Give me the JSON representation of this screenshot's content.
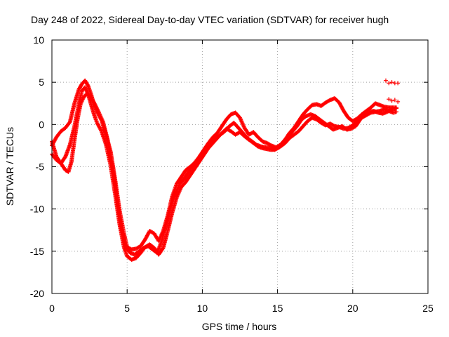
{
  "chart_data": {
    "type": "scatter",
    "title": "Day 248 of 2022, Sidereal Day-to-day VTEC variation (SDTVAR) for receiver hugh",
    "xlabel": "GPS time / hours",
    "ylabel": "SDTVAR / TECUs",
    "xlim": [
      0,
      25
    ],
    "ylim": [
      -20,
      10
    ],
    "xticks": [
      0,
      5,
      10,
      15,
      20,
      25
    ],
    "yticks": [
      -20,
      -15,
      -10,
      -5,
      0,
      5,
      10
    ],
    "grid": true,
    "marker": "plus",
    "color": "#ff0000",
    "series": [
      {
        "name": "trace-1",
        "points": [
          [
            0.0,
            -2.5
          ],
          [
            0.3,
            -1.5
          ],
          [
            0.6,
            -0.8
          ],
          [
            0.9,
            -0.4
          ],
          [
            1.2,
            0.3
          ],
          [
            1.5,
            2.5
          ],
          [
            1.8,
            4.2
          ],
          [
            2.0,
            4.8
          ],
          [
            2.2,
            5.2
          ],
          [
            2.4,
            4.6
          ],
          [
            2.6,
            3.6
          ],
          [
            2.8,
            2.4
          ],
          [
            3.0,
            1.5
          ],
          [
            3.3,
            0.5
          ],
          [
            3.6,
            -1.2
          ],
          [
            3.9,
            -3.2
          ],
          [
            4.2,
            -6.5
          ],
          [
            4.5,
            -10.2
          ],
          [
            4.8,
            -13.0
          ],
          [
            5.0,
            -14.5
          ],
          [
            5.3,
            -14.8
          ],
          [
            5.6,
            -14.7
          ],
          [
            5.9,
            -14.4
          ],
          [
            6.2,
            -13.6
          ],
          [
            6.5,
            -12.6
          ],
          [
            6.8,
            -12.9
          ],
          [
            7.1,
            -13.8
          ],
          [
            7.4,
            -12.6
          ],
          [
            7.7,
            -10.8
          ],
          [
            8.0,
            -8.5
          ],
          [
            8.3,
            -7.0
          ],
          [
            8.6,
            -6.2
          ],
          [
            8.9,
            -5.4
          ],
          [
            9.2,
            -5.0
          ],
          [
            9.5,
            -4.5
          ],
          [
            9.8,
            -3.8
          ],
          [
            10.1,
            -3.0
          ],
          [
            10.4,
            -2.2
          ],
          [
            10.7,
            -1.5
          ],
          [
            11.0,
            -1.0
          ],
          [
            11.3,
            -0.2
          ],
          [
            11.6,
            0.6
          ],
          [
            11.9,
            1.2
          ],
          [
            12.2,
            1.4
          ],
          [
            12.5,
            0.8
          ],
          [
            12.8,
            -0.4
          ],
          [
            13.1,
            -1.2
          ],
          [
            13.4,
            -0.9
          ],
          [
            13.7,
            -1.5
          ],
          [
            14.0,
            -2.0
          ],
          [
            14.3,
            -2.2
          ],
          [
            14.6,
            -2.5
          ],
          [
            14.9,
            -2.7
          ],
          [
            15.2,
            -2.4
          ],
          [
            15.5,
            -1.8
          ],
          [
            15.8,
            -1.0
          ],
          [
            16.1,
            -0.4
          ],
          [
            16.4,
            0.4
          ],
          [
            16.7,
            1.2
          ],
          [
            17.0,
            1.8
          ],
          [
            17.3,
            2.3
          ],
          [
            17.6,
            2.4
          ],
          [
            17.9,
            2.2
          ],
          [
            18.2,
            2.6
          ],
          [
            18.5,
            2.9
          ],
          [
            18.8,
            3.1
          ],
          [
            19.1,
            2.6
          ],
          [
            19.4,
            1.6
          ],
          [
            19.7,
            0.8
          ],
          [
            20.0,
            0.4
          ],
          [
            20.3,
            0.7
          ],
          [
            20.6,
            1.2
          ],
          [
            20.9,
            1.6
          ],
          [
            21.2,
            2.0
          ],
          [
            21.5,
            2.5
          ],
          [
            21.8,
            2.3
          ],
          [
            22.1,
            2.1
          ],
          [
            22.4,
            2.0
          ],
          [
            22.7,
            2.0
          ],
          [
            22.9,
            2.0
          ]
        ]
      },
      {
        "name": "trace-2",
        "points": [
          [
            0.0,
            -3.5
          ],
          [
            0.3,
            -4.2
          ],
          [
            0.6,
            -4.6
          ],
          [
            0.9,
            -3.8
          ],
          [
            1.2,
            -2.4
          ],
          [
            1.5,
            -0.2
          ],
          [
            1.8,
            2.5
          ],
          [
            2.0,
            4.0
          ],
          [
            2.2,
            4.4
          ],
          [
            2.4,
            3.6
          ],
          [
            2.6,
            2.4
          ],
          [
            2.8,
            1.2
          ],
          [
            3.0,
            0.2
          ],
          [
            3.3,
            -0.8
          ],
          [
            3.6,
            -2.4
          ],
          [
            3.9,
            -4.8
          ],
          [
            4.2,
            -8.2
          ],
          [
            4.5,
            -11.8
          ],
          [
            4.8,
            -14.6
          ],
          [
            5.0,
            -15.6
          ],
          [
            5.3,
            -16.0
          ],
          [
            5.6,
            -15.8
          ],
          [
            5.9,
            -15.2
          ],
          [
            6.2,
            -14.5
          ],
          [
            6.5,
            -14.2
          ],
          [
            6.8,
            -14.6
          ],
          [
            7.1,
            -15.4
          ],
          [
            7.4,
            -14.6
          ],
          [
            7.7,
            -12.6
          ],
          [
            8.0,
            -10.4
          ],
          [
            8.3,
            -8.6
          ],
          [
            8.6,
            -7.4
          ],
          [
            8.9,
            -6.8
          ],
          [
            9.2,
            -6.0
          ],
          [
            9.5,
            -5.2
          ],
          [
            9.8,
            -4.4
          ],
          [
            10.1,
            -3.6
          ],
          [
            10.4,
            -2.8
          ],
          [
            10.7,
            -2.2
          ],
          [
            11.0,
            -1.6
          ],
          [
            11.3,
            -1.0
          ],
          [
            11.6,
            -0.5
          ],
          [
            11.9,
            -0.8
          ],
          [
            12.2,
            -1.2
          ],
          [
            12.5,
            -0.9
          ],
          [
            12.8,
            -1.4
          ],
          [
            13.1,
            -1.8
          ],
          [
            13.4,
            -2.2
          ],
          [
            13.7,
            -2.6
          ],
          [
            14.0,
            -2.8
          ],
          [
            14.3,
            -2.9
          ],
          [
            14.6,
            -3.0
          ],
          [
            14.9,
            -2.9
          ],
          [
            15.2,
            -2.6
          ],
          [
            15.5,
            -2.2
          ],
          [
            15.8,
            -1.6
          ],
          [
            16.1,
            -1.2
          ],
          [
            16.4,
            -0.8
          ],
          [
            16.7,
            -0.2
          ],
          [
            17.0,
            0.4
          ],
          [
            17.3,
            0.8
          ],
          [
            17.6,
            0.6
          ],
          [
            17.9,
            0.2
          ],
          [
            18.2,
            -0.1
          ],
          [
            18.5,
            0.1
          ],
          [
            18.8,
            -0.2
          ],
          [
            19.1,
            -0.3
          ],
          [
            19.4,
            -0.5
          ],
          [
            19.7,
            -0.4
          ],
          [
            20.0,
            -0.1
          ],
          [
            20.3,
            0.4
          ],
          [
            20.6,
            0.8
          ],
          [
            20.9,
            1.1
          ],
          [
            21.2,
            1.4
          ],
          [
            21.5,
            1.5
          ],
          [
            21.8,
            1.6
          ],
          [
            22.1,
            1.8
          ],
          [
            22.4,
            1.6
          ],
          [
            22.7,
            1.4
          ],
          [
            22.9,
            1.5
          ]
        ]
      },
      {
        "name": "trace-3",
        "points": [
          [
            0.0,
            -2.0
          ],
          [
            0.3,
            -3.8
          ],
          [
            0.6,
            -4.6
          ],
          [
            0.9,
            -5.4
          ],
          [
            1.1,
            -5.6
          ],
          [
            1.3,
            -4.4
          ],
          [
            1.5,
            -1.8
          ],
          [
            1.7,
            0.6
          ],
          [
            1.9,
            2.4
          ],
          [
            2.1,
            3.2
          ],
          [
            2.3,
            3.6
          ],
          [
            2.5,
            3.4
          ],
          [
            2.8,
            2.6
          ],
          [
            3.1,
            1.5
          ],
          [
            3.4,
            0.3
          ],
          [
            3.7,
            -1.8
          ],
          [
            4.0,
            -4.6
          ],
          [
            4.3,
            -8.4
          ],
          [
            4.6,
            -12.2
          ],
          [
            4.9,
            -14.4
          ],
          [
            5.2,
            -15.2
          ],
          [
            5.5,
            -15.4
          ],
          [
            5.8,
            -15.0
          ],
          [
            6.1,
            -14.6
          ],
          [
            6.4,
            -14.4
          ],
          [
            6.7,
            -14.8
          ],
          [
            7.0,
            -15.2
          ],
          [
            7.3,
            -13.8
          ],
          [
            7.6,
            -11.8
          ],
          [
            7.9,
            -9.8
          ],
          [
            8.2,
            -8.2
          ],
          [
            8.5,
            -7.0
          ],
          [
            8.8,
            -6.4
          ],
          [
            9.1,
            -5.6
          ],
          [
            9.4,
            -4.8
          ],
          [
            9.7,
            -4.2
          ],
          [
            10.0,
            -3.4
          ],
          [
            10.3,
            -2.6
          ],
          [
            10.6,
            -2.0
          ],
          [
            10.9,
            -1.6
          ],
          [
            11.2,
            -1.2
          ],
          [
            11.5,
            -0.8
          ],
          [
            11.8,
            -0.2
          ],
          [
            12.1,
            0.2
          ],
          [
            12.4,
            -0.4
          ],
          [
            12.7,
            -1.0
          ],
          [
            13.0,
            -1.6
          ],
          [
            13.3,
            -2.0
          ],
          [
            13.6,
            -2.4
          ],
          [
            13.9,
            -2.6
          ],
          [
            14.2,
            -2.7
          ],
          [
            14.5,
            -2.8
          ],
          [
            14.8,
            -3.0
          ],
          [
            15.1,
            -2.7
          ],
          [
            15.4,
            -2.0
          ],
          [
            15.7,
            -1.4
          ],
          [
            16.0,
            -0.8
          ],
          [
            16.3,
            -0.2
          ],
          [
            16.6,
            0.6
          ],
          [
            16.9,
            1.0
          ],
          [
            17.2,
            1.2
          ],
          [
            17.5,
            1.0
          ],
          [
            17.8,
            0.6
          ],
          [
            18.1,
            0.2
          ],
          [
            18.4,
            -0.2
          ],
          [
            18.7,
            -0.6
          ],
          [
            19.0,
            -0.4
          ],
          [
            19.3,
            -0.2
          ],
          [
            19.6,
            -0.6
          ],
          [
            19.9,
            -0.5
          ],
          [
            20.2,
            -0.2
          ],
          [
            20.5,
            0.6
          ],
          [
            20.8,
            1.2
          ],
          [
            21.1,
            1.5
          ],
          [
            21.4,
            1.6
          ],
          [
            21.7,
            1.4
          ],
          [
            22.0,
            1.3
          ],
          [
            22.3,
            1.5
          ],
          [
            22.6,
            1.8
          ],
          [
            22.9,
            1.9
          ]
        ]
      },
      {
        "name": "trace-4",
        "points": [
          [
            22.2,
            5.2
          ],
          [
            22.4,
            4.9
          ],
          [
            22.6,
            5.0
          ],
          [
            22.8,
            4.9
          ],
          [
            23.0,
            4.9
          ],
          [
            22.4,
            3.0
          ],
          [
            22.6,
            2.8
          ],
          [
            22.8,
            2.9
          ],
          [
            23.0,
            2.7
          ]
        ]
      }
    ]
  }
}
